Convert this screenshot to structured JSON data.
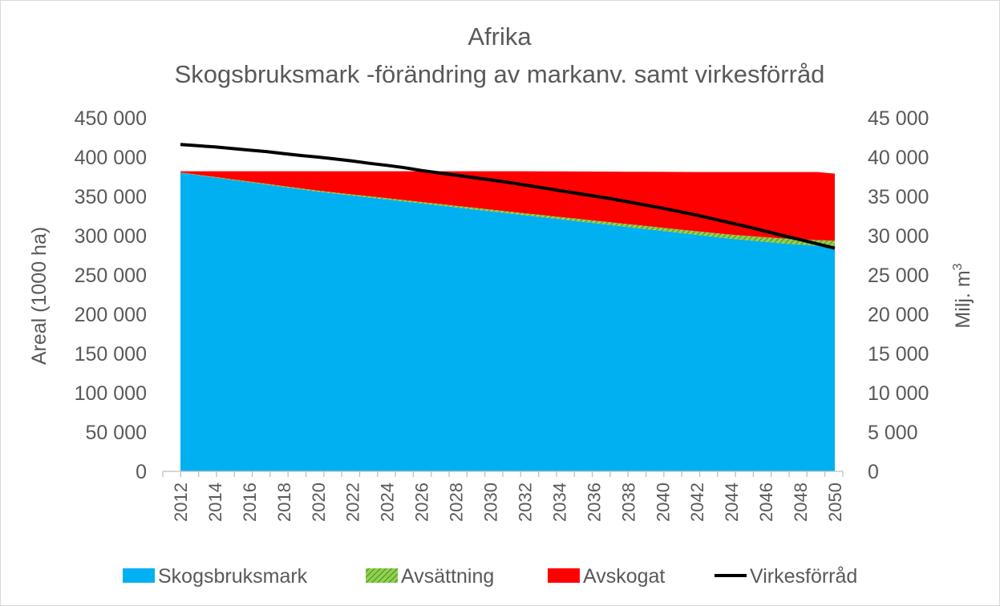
{
  "chart_data": {
    "type": "area",
    "title": "Afrika",
    "subtitle": "Skogsbruksmark -förändring av markanv. samt virkesförråd",
    "ylabel": "Areal (1000 ha)",
    "y2label": "Milj. m",
    "y2label_sup": "3",
    "ylim": [
      0,
      450000
    ],
    "y2lim": [
      0,
      45000
    ],
    "yticks": [
      "0",
      "50 000",
      "100 000",
      "150 000",
      "200 000",
      "250 000",
      "300 000",
      "350 000",
      "400 000",
      "450 000"
    ],
    "y2ticks": [
      "0",
      "5 000",
      "10 000",
      "15 000",
      "20 000",
      "25 000",
      "30 000",
      "35 000",
      "40 000",
      "45 000"
    ],
    "x": [
      2012,
      2013,
      2014,
      2015,
      2016,
      2017,
      2018,
      2019,
      2020,
      2021,
      2022,
      2023,
      2024,
      2025,
      2026,
      2027,
      2028,
      2029,
      2030,
      2031,
      2032,
      2033,
      2034,
      2035,
      2036,
      2037,
      2038,
      2039,
      2040,
      2041,
      2042,
      2043,
      2044,
      2045,
      2046,
      2047,
      2048,
      2049,
      2050
    ],
    "xticks": [
      "2012",
      "2014",
      "2016",
      "2018",
      "2020",
      "2022",
      "2024",
      "2026",
      "2028",
      "2030",
      "2032",
      "2034",
      "2036",
      "2038",
      "2040",
      "2042",
      "2044",
      "2046",
      "2048",
      "2050"
    ],
    "colors": {
      "skogsbruksmark": "#00b0f0",
      "avsattning": "#70c040",
      "avskogat": "#ff0000",
      "virkesforrad": "#000000"
    },
    "series": [
      {
        "name": "Skogsbruksmark",
        "kind": "stacked-area",
        "axis": "left",
        "values": [
          380000,
          377000,
          374000,
          371000,
          368000,
          365000,
          362000,
          359000,
          356000,
          353500,
          351000,
          348500,
          346000,
          343500,
          341000,
          338500,
          336000,
          333500,
          331000,
          328500,
          326000,
          323500,
          321000,
          318500,
          316000,
          313500,
          311000,
          308500,
          306000,
          303500,
          301000,
          298500,
          296000,
          294000,
          292000,
          290000,
          288500,
          287000,
          285500
        ]
      },
      {
        "name": "Avsättning",
        "kind": "stacked-area",
        "axis": "left",
        "values": [
          500,
          600,
          700,
          800,
          900,
          1000,
          1100,
          1200,
          1300,
          1400,
          1500,
          1600,
          1700,
          1800,
          1900,
          2000,
          2100,
          2200,
          2300,
          2400,
          2500,
          2700,
          2900,
          3100,
          3300,
          3500,
          3700,
          3900,
          4100,
          4300,
          4600,
          4900,
          5200,
          5600,
          6000,
          6400,
          6900,
          7400,
          8000
        ]
      },
      {
        "name": "Avskogat",
        "kind": "stacked-area",
        "axis": "left",
        "values": [
          1500,
          4400,
          7300,
          10200,
          13100,
          16000,
          18900,
          21800,
          24700,
          27100,
          29500,
          31900,
          34300,
          36700,
          39100,
          41500,
          43900,
          46300,
          48700,
          51100,
          53500,
          55700,
          57900,
          60100,
          62300,
          64500,
          66700,
          68900,
          71100,
          73300,
          75400,
          77600,
          79800,
          81400,
          83000,
          84600,
          85600,
          86600,
          85500
        ]
      },
      {
        "name": "Virkesförråd",
        "kind": "line",
        "axis": "right",
        "values": [
          41600,
          41450,
          41300,
          41100,
          40900,
          40700,
          40450,
          40200,
          40000,
          39750,
          39500,
          39200,
          38950,
          38650,
          38300,
          38000,
          37700,
          37400,
          37100,
          36800,
          36450,
          36100,
          35750,
          35400,
          35050,
          34700,
          34300,
          33900,
          33500,
          33050,
          32600,
          32100,
          31600,
          31100,
          30550,
          30000,
          29500,
          28950,
          28400
        ]
      }
    ],
    "legend": {
      "placement": "bottom",
      "items": [
        "Skogsbruksmark",
        "Avsättning",
        "Avskogat",
        "Virkesförråd"
      ]
    },
    "grid": false
  }
}
